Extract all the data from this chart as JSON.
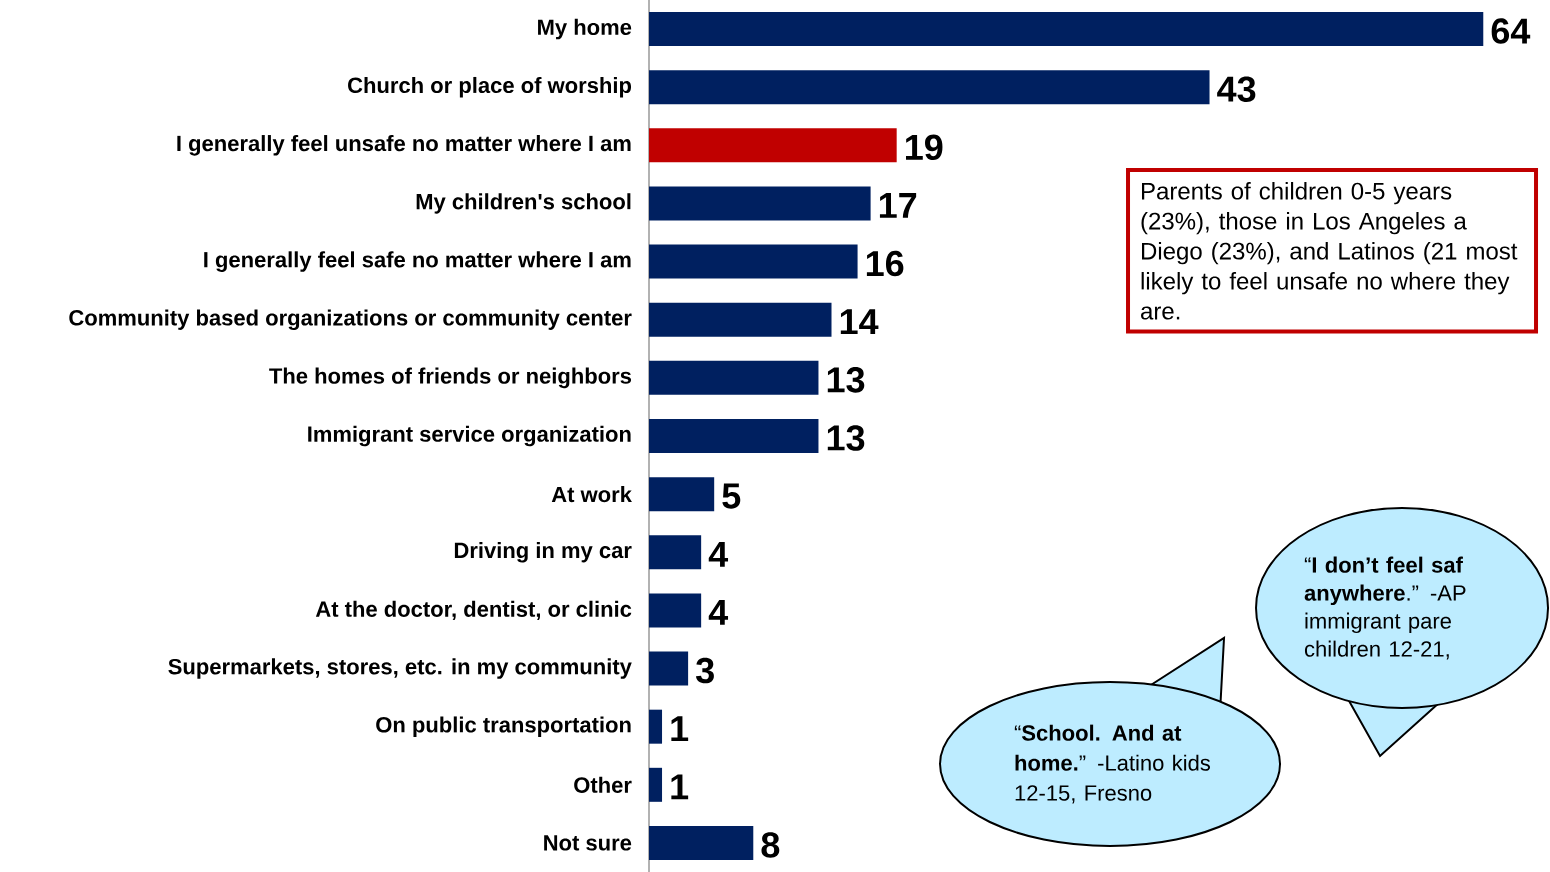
{
  "chart_data": {
    "type": "bar",
    "orientation": "horizontal",
    "categories": [
      "My home",
      "Church or place of worship",
      "I generally feel unsafe no matter where I am",
      "My children's school",
      "I generally feel safe no matter where I am",
      "Community based organizations or community center",
      "The homes of friends or neighbors",
      "Immigrant service organization",
      "At work",
      "Driving in my car",
      "At the doctor, dentist, or clinic",
      "Supermarkets, stores, etc. in my community",
      "On public transportation",
      "Other",
      "Not sure"
    ],
    "values": [
      64,
      43,
      19,
      17,
      16,
      14,
      13,
      13,
      5,
      4,
      4,
      3,
      1,
      1,
      8
    ],
    "colors": [
      "#002060",
      "#002060",
      "#c00000",
      "#002060",
      "#002060",
      "#002060",
      "#002060",
      "#002060",
      "#002060",
      "#002060",
      "#002060",
      "#002060",
      "#002060",
      "#002060",
      "#002060"
    ],
    "tick_labels": "y",
    "data_labels": true,
    "annotations": [
      "Parents of children 0-5 years (23%), those in Los Angeles a Diego (23%), and Latinos (21 most likely to feel unsafe no where they are.",
      "“**I don’t feel saf anywhere**.” -AP immigrant pare children 12-21,",
      "“**School. And at home.**” -Latino kids 12-15, Fresno"
    ]
  }
}
